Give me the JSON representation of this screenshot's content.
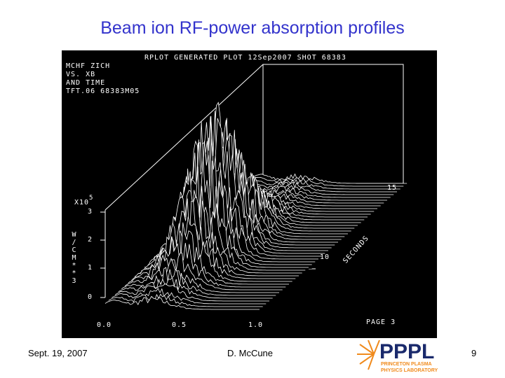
{
  "title": "Beam ion RF-power absorption profiles",
  "plot": {
    "header": "RPLOT GENERATED PLOT 12Sep2007 SHOT 68383",
    "info": [
      "MCHF ZICH",
      "VS. XB",
      "AND TIME",
      "TFT.06 68383M05"
    ],
    "scale": "X10",
    "scale_exponent": "5",
    "y_label": "W/CM**3",
    "y_ticks": [
      "3",
      "2",
      "1",
      "0"
    ],
    "x_ticks": [
      "0.0",
      "0.5",
      "1.0"
    ],
    "t_ticks": [
      "10",
      "15"
    ],
    "t_label": "SECONDS",
    "page": "PAGE 3"
  },
  "footer": {
    "date": "Sept. 19, 2007",
    "author": "D. McCune",
    "page_number": "9"
  },
  "logo": {
    "name": "PPPL",
    "line1": "PRINCETON PLASMA",
    "line2": "PHYSICS LABORATORY"
  }
}
